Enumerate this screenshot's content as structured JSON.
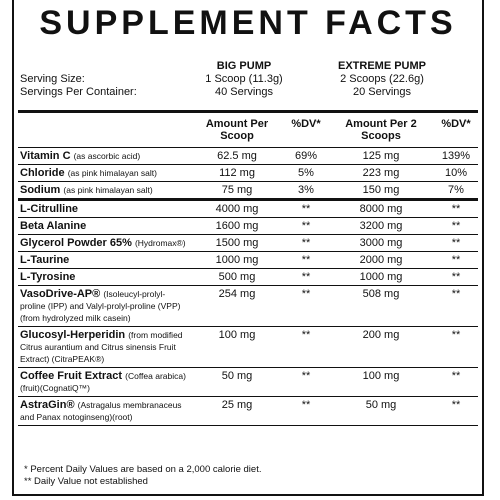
{
  "header": {
    "title": "SUPPLEMENT FACTS"
  },
  "serving": {
    "labels": [
      "Serving Size:",
      "Servings Per Container:"
    ],
    "products": [
      {
        "name": "BIG PUMP",
        "size": "1 Scoop (11.3g)",
        "servings": "40 Servings"
      },
      {
        "name": "EXTREME PUMP",
        "size": "2 Scoops (22.6g)",
        "servings": "20 Servings"
      }
    ]
  },
  "table": {
    "columns": [
      "Amount Per Scoop",
      "%DV*",
      "Amount Per 2 Scoops",
      "%DV*"
    ],
    "rows": [
      {
        "name": "Vitamin C",
        "note": "(as ascorbic acid)",
        "cells": [
          "62.5 mg",
          "69%",
          "125 mg",
          "139%"
        ]
      },
      {
        "name": "Chloride",
        "note": "(as pink himalayan salt)",
        "cells": [
          "112 mg",
          "5%",
          "223 mg",
          "10%"
        ]
      },
      {
        "name": "Sodium",
        "note": "(as pink himalayan salt)",
        "cells": [
          "75 mg",
          "3%",
          "150 mg",
          "7%"
        ]
      },
      {
        "name": "L-Citrulline",
        "cells": [
          "4000 mg",
          "**",
          "8000 mg",
          "**"
        ]
      },
      {
        "name": "Beta Alanine",
        "cells": [
          "1600 mg",
          "**",
          "3200 mg",
          "**"
        ]
      },
      {
        "name": "Glycerol Powder 65%",
        "note": "(Hydromax®)",
        "cells": [
          "1500 mg",
          "**",
          "3000 mg",
          "**"
        ]
      },
      {
        "name": "L-Taurine",
        "cells": [
          "1000 mg",
          "**",
          "2000 mg",
          "**"
        ]
      },
      {
        "name": "L-Tyrosine",
        "cells": [
          "500 mg",
          "**",
          "1000 mg",
          "**"
        ]
      },
      {
        "name": "VasoDrive-AP®",
        "note": "(Isoleucyl-prolyl-proline (IPP) and Valyl-prolyl-proline (VPP) (from hydrolyzed milk casein)",
        "cells": [
          "254 mg",
          "**",
          "508 mg",
          "**"
        ]
      },
      {
        "name": "Glucosyl-Herperidin",
        "note": "(from modified Citrus aurantium and Citrus sinensis Fruit Extract) (CitraPEAK®)",
        "cells": [
          "100 mg",
          "**",
          "200 mg",
          "**"
        ]
      },
      {
        "name": "Coffee Fruit Extract",
        "note": "(Coffea arabica)(fruit)(CognatiQ™)",
        "cells": [
          "50 mg",
          "**",
          "100 mg",
          "**"
        ]
      },
      {
        "name": "AstraGin®",
        "note": "(Astragalus membranaceus and Panax notoginseng)(root)",
        "cells": [
          "25 mg",
          "**",
          "50 mg",
          "**"
        ]
      }
    ]
  },
  "footnotes": [
    "* Percent Daily Values are based on a 2,000 calorie diet.",
    "** Daily Value not established"
  ]
}
